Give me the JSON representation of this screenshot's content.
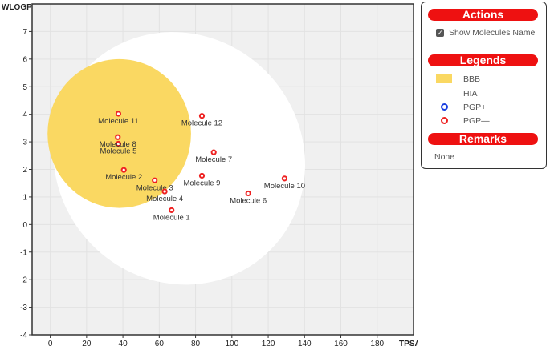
{
  "chart_data": {
    "type": "scatter",
    "title": "",
    "xlabel": "TPSA",
    "ylabel": "WLOGP",
    "xlim": [
      -10,
      200
    ],
    "ylim": [
      -4,
      8
    ],
    "xticks": [
      0,
      20,
      40,
      60,
      80,
      100,
      120,
      140,
      160,
      180
    ],
    "yticks": [
      -4,
      -3,
      -2,
      -1,
      0,
      1,
      2,
      3,
      4,
      5,
      6,
      7
    ],
    "regions": [
      {
        "name": "HIA",
        "color": "#ffffff",
        "shape": "ellipse",
        "cx": 71.0,
        "cy": 2.4,
        "rx": 142.5,
        "ry": 8.9,
        "angle_deg": 48
      },
      {
        "name": "BBB",
        "color": "#fad862",
        "shape": "ellipse",
        "cx": 38.0,
        "cy": 3.3,
        "rx": 79.0,
        "ry": 5.4,
        "angle_deg": 0
      }
    ],
    "series": [
      {
        "name": "PGP—",
        "color": "#ee2222",
        "points": [
          {
            "label": "Molecule 1",
            "x": 66.8,
            "y": 0.52
          },
          {
            "label": "Molecule 2",
            "x": 40.5,
            "y": 1.98
          },
          {
            "label": "Molecule 3",
            "x": 57.5,
            "y": 1.6
          },
          {
            "label": "Molecule 4",
            "x": 63.0,
            "y": 1.2
          },
          {
            "label": "Molecule 5",
            "x": 37.5,
            "y": 2.93
          },
          {
            "label": "Molecule 6",
            "x": 109.0,
            "y": 1.13
          },
          {
            "label": "Molecule 7",
            "x": 90.0,
            "y": 2.62
          },
          {
            "label": "Molecule 8",
            "x": 37.2,
            "y": 3.17
          },
          {
            "label": "Molecule 9",
            "x": 83.5,
            "y": 1.77
          },
          {
            "label": "Molecule 10",
            "x": 129.0,
            "y": 1.67
          },
          {
            "label": "Molecule 11",
            "x": 37.5,
            "y": 4.02
          },
          {
            "label": "Molecule 12",
            "x": 83.5,
            "y": 3.94
          }
        ]
      }
    ]
  },
  "actions": {
    "title": "Actions",
    "show_names_label": "Show Molecules Name",
    "show_names_checked": true
  },
  "legends": {
    "title": "Legends",
    "items": [
      {
        "label": "BBB",
        "kind": "swatch",
        "color": "#fad862"
      },
      {
        "label": "HIA",
        "kind": "swatch",
        "color": "#ffffff"
      },
      {
        "label": "PGP+",
        "kind": "dot",
        "color": "#1a3fe0"
      },
      {
        "label": "PGP—",
        "kind": "dot",
        "color": "#ee2222"
      }
    ]
  },
  "remarks": {
    "title": "Remarks",
    "text": "None"
  }
}
